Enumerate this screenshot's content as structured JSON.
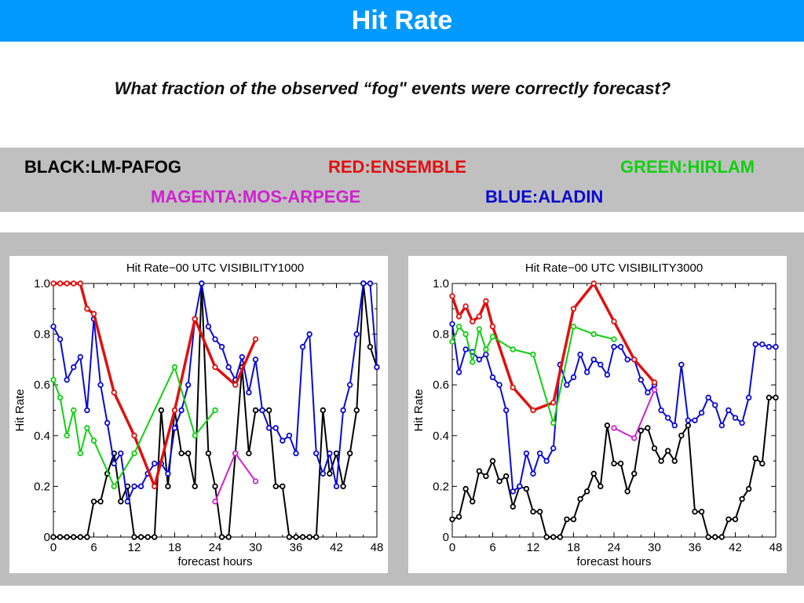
{
  "title": "Hit Rate",
  "question": "What fraction of the observed “fog\" events were correctly forecast?",
  "legend": [
    {
      "label": "BLACK:LM-PAFOG",
      "color": "#000000"
    },
    {
      "label": "RED:ENSEMBLE",
      "color": "#e01010"
    },
    {
      "label": "GREEN:HIRLAM",
      "color": "#10d010"
    },
    {
      "label": "MAGENTA:MOS-ARPEGE",
      "color": "#d020d0"
    },
    {
      "label": "BLUE:ALADIN",
      "color": "#0a0ad0"
    }
  ],
  "chart_data": [
    {
      "type": "line",
      "title": "Hit Rate−00 UTC VISIBILITY1000",
      "xlabel": "forecast hours",
      "ylabel": "Hit Rate",
      "xlim": [
        0,
        48
      ],
      "ylim": [
        0,
        1
      ],
      "xticks": [
        0,
        6,
        12,
        18,
        24,
        30,
        36,
        42,
        48
      ],
      "yticks": [
        0,
        0.2,
        0.4,
        0.6,
        0.8,
        1.0
      ],
      "ytick_labels": [
        "0",
        "0.2",
        "0.4",
        "0.6",
        "0.8",
        "1.0"
      ],
      "series": [
        {
          "color": "#000000",
          "x": [
            0,
            1,
            2,
            3,
            4,
            5,
            6,
            7,
            8,
            9,
            10,
            11,
            12,
            13,
            14,
            15,
            16,
            17,
            18,
            19,
            20,
            21,
            22,
            23,
            24,
            25,
            26,
            27,
            28,
            29,
            30,
            31,
            32,
            33,
            34,
            35,
            36,
            37,
            38,
            39,
            40,
            41,
            42,
            43,
            44,
            45,
            46,
            47,
            48
          ],
          "y": [
            0,
            0,
            0,
            0,
            0,
            0,
            0.14,
            0.14,
            0.25,
            0.33,
            0.14,
            0.2,
            0,
            0,
            0,
            0,
            0.5,
            0.2,
            0.5,
            0.33,
            0.33,
            0.2,
            1.0,
            0.33,
            0.2,
            0,
            0,
            0.33,
            0.67,
            0.33,
            0.5,
            0.5,
            0.5,
            0.2,
            0.2,
            0,
            0,
            0,
            0,
            0,
            0.5,
            0.25,
            0.33,
            0.2,
            0.33,
            0.5,
            1.0,
            0.75,
            0.67
          ]
        },
        {
          "color": "#0a0ad0",
          "x": [
            0,
            1,
            2,
            3,
            4,
            5,
            6,
            7,
            8,
            9,
            10,
            11,
            12,
            13,
            14,
            15,
            16,
            17,
            18,
            19,
            20,
            21,
            22,
            23,
            24,
            25,
            26,
            27,
            28,
            29,
            30,
            31,
            32,
            33,
            34,
            35,
            36,
            37,
            38,
            39,
            40,
            41,
            42,
            43,
            44,
            45,
            46,
            47,
            48
          ],
          "y": [
            0.83,
            0.78,
            0.62,
            0.67,
            0.71,
            0.5,
            0.86,
            0.6,
            0.45,
            0.29,
            0.33,
            0.14,
            0.2,
            0.2,
            0.25,
            0.29,
            0.29,
            0.25,
            0.43,
            0.5,
            0.6,
            0.86,
            1.0,
            0.83,
            0.78,
            0.75,
            0.67,
            0.62,
            0.71,
            0.57,
            0.7,
            0.5,
            0.43,
            0.43,
            0.38,
            0.4,
            0.33,
            0.75,
            0.8,
            0.33,
            0.25,
            0.33,
            0.2,
            0.5,
            0.6,
            0.8,
            1.0,
            1.0,
            0.67
          ]
        },
        {
          "color": "#e01010",
          "x": [
            0,
            1,
            2,
            3,
            4,
            5,
            6,
            9,
            12,
            15,
            18,
            21,
            24,
            27,
            30
          ],
          "y": [
            1.0,
            1.0,
            1.0,
            1.0,
            1.0,
            0.9,
            0.88,
            0.57,
            0.4,
            0.2,
            0.5,
            0.86,
            0.67,
            0.6,
            0.78
          ]
        },
        {
          "color": "#10d010",
          "x": [
            0,
            1,
            2,
            3,
            4,
            5,
            6,
            9,
            12,
            18,
            21,
            24
          ],
          "y": [
            0.62,
            0.55,
            0.4,
            0.5,
            0.33,
            0.43,
            0.38,
            0.2,
            0.33,
            0.67,
            0.4,
            0.5
          ]
        },
        {
          "color": "#d020d0",
          "x": [
            24,
            27,
            30
          ],
          "y": [
            0.14,
            0.33,
            0.22
          ]
        }
      ]
    },
    {
      "type": "line",
      "title": "Hit Rate−00 UTC VISIBILITY3000",
      "xlabel": "forecast hours",
      "ylabel": "Hit Rate",
      "xlim": [
        0,
        48
      ],
      "ylim": [
        0,
        1
      ],
      "xticks": [
        0,
        6,
        12,
        18,
        24,
        30,
        36,
        42,
        48
      ],
      "yticks": [
        0,
        0.2,
        0.4,
        0.6,
        0.8,
        1.0
      ],
      "ytick_labels": [
        "0",
        "0.2",
        "0.4",
        "0.6",
        "0.8",
        "1.0"
      ],
      "series": [
        {
          "color": "#000000",
          "x": [
            0,
            1,
            2,
            3,
            4,
            5,
            6,
            7,
            8,
            9,
            10,
            11,
            12,
            13,
            14,
            15,
            16,
            17,
            18,
            19,
            20,
            21,
            22,
            23,
            24,
            25,
            26,
            27,
            28,
            29,
            30,
            31,
            32,
            33,
            34,
            35,
            36,
            37,
            38,
            39,
            40,
            41,
            42,
            43,
            44,
            45,
            46,
            47,
            48
          ],
          "y": [
            0.07,
            0.08,
            0.19,
            0.14,
            0.26,
            0.24,
            0.3,
            0.22,
            0.24,
            0.12,
            0.2,
            0.19,
            0.1,
            0.1,
            0,
            0,
            0,
            0.07,
            0.07,
            0.15,
            0.18,
            0.25,
            0.2,
            0.44,
            0.29,
            0.29,
            0.18,
            0.25,
            0.42,
            0.43,
            0.35,
            0.3,
            0.34,
            0.3,
            0.4,
            0.44,
            0.1,
            0.1,
            0,
            0,
            0,
            0.07,
            0.07,
            0.15,
            0.19,
            0.31,
            0.29,
            0.55,
            0.55
          ]
        },
        {
          "color": "#0a0ad0",
          "x": [
            0,
            1,
            2,
            3,
            4,
            5,
            6,
            7,
            8,
            9,
            10,
            11,
            12,
            13,
            14,
            15,
            16,
            17,
            18,
            19,
            20,
            21,
            22,
            23,
            24,
            25,
            26,
            27,
            28,
            29,
            30,
            31,
            32,
            33,
            34,
            35,
            36,
            37,
            38,
            39,
            40,
            41,
            42,
            43,
            44,
            45,
            46,
            47,
            48
          ],
          "y": [
            0.84,
            0.65,
            0.74,
            0.73,
            0.7,
            0.72,
            0.63,
            0.6,
            0.5,
            0.18,
            0.2,
            0.33,
            0.25,
            0.33,
            0.3,
            0.35,
            0.68,
            0.6,
            0.63,
            0.72,
            0.65,
            0.7,
            0.68,
            0.64,
            0.75,
            0.75,
            0.7,
            0.7,
            0.62,
            0.57,
            0.6,
            0.5,
            0.47,
            0.44,
            0.68,
            0.46,
            0.46,
            0.49,
            0.55,
            0.52,
            0.44,
            0.5,
            0.47,
            0.45,
            0.55,
            0.76,
            0.76,
            0.75,
            0.75
          ]
        },
        {
          "color": "#e01010",
          "x": [
            0,
            1,
            2,
            3,
            4,
            5,
            6,
            9,
            12,
            15,
            18,
            21,
            24,
            27,
            30
          ],
          "y": [
            0.95,
            0.87,
            0.91,
            0.85,
            0.87,
            0.93,
            0.83,
            0.59,
            0.5,
            0.53,
            0.9,
            1.0,
            0.85,
            0.7,
            0.61
          ]
        },
        {
          "color": "#10d010",
          "x": [
            0,
            1,
            2,
            3,
            4,
            5,
            6,
            9,
            12,
            15,
            18,
            21,
            24
          ],
          "y": [
            0.77,
            0.83,
            0.8,
            0.69,
            0.82,
            0.74,
            0.79,
            0.74,
            0.72,
            0.45,
            0.83,
            0.8,
            0.78
          ]
        },
        {
          "color": "#d020d0",
          "x": [
            24,
            27,
            30
          ],
          "y": [
            0.43,
            0.39,
            0.58
          ]
        }
      ]
    }
  ]
}
